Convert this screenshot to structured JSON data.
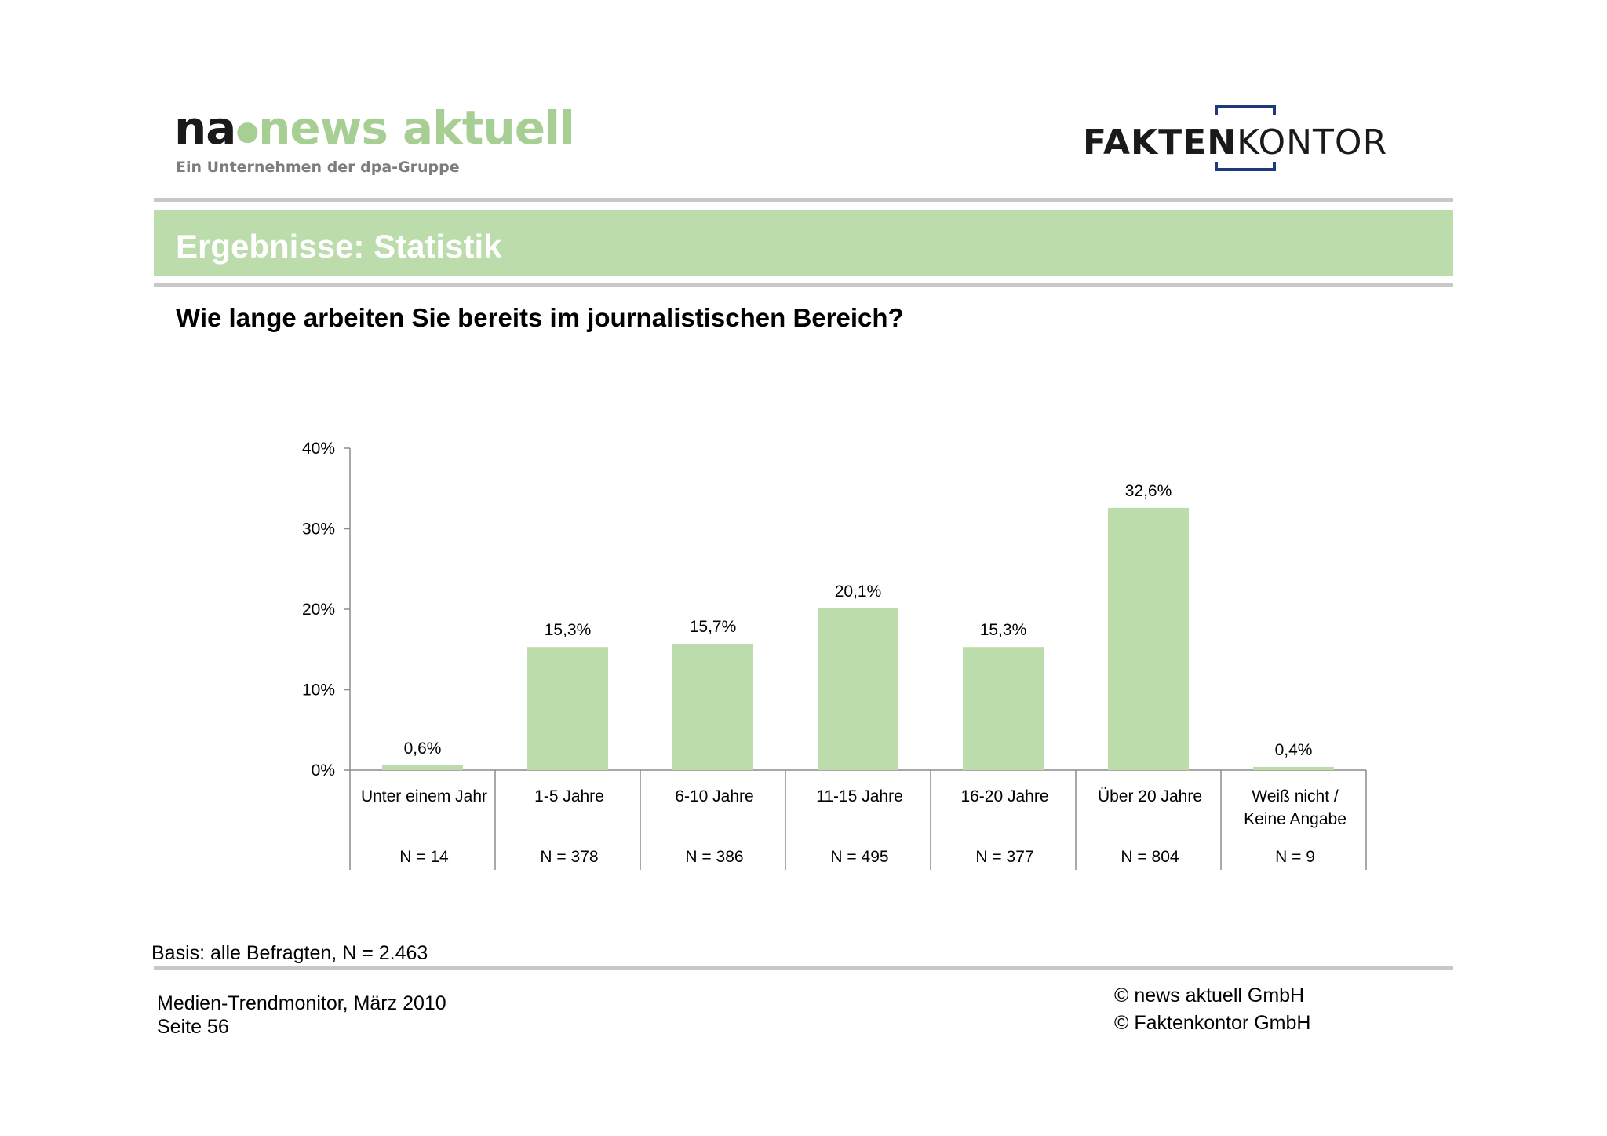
{
  "header": {
    "logo_na": "na",
    "logo_news": "news aktuell",
    "logo_sub": "Ein Unternehmen der dpa-Gruppe",
    "logo_fk_bold": "FAKTEN",
    "logo_fk_thin": "KONTOR"
  },
  "section_title": "Ergebnisse: Statistik",
  "question": "Wie lange arbeiten Sie bereits im journalistischen Bereich?",
  "chart_data": {
    "type": "bar",
    "categories": [
      "Unter einem Jahr",
      "1-5 Jahre",
      "6-10 Jahre",
      "11-15 Jahre",
      "16-20 Jahre",
      "Über 20 Jahre",
      "Weiß nicht / Keine Angabe"
    ],
    "category_lines": [
      [
        "Unter einem Jahr"
      ],
      [
        "1-5 Jahre"
      ],
      [
        "6-10 Jahre"
      ],
      [
        "11-15 Jahre"
      ],
      [
        "16-20 Jahre"
      ],
      [
        "Über 20 Jahre"
      ],
      [
        "Weiß nicht /",
        "Keine Angabe"
      ]
    ],
    "values": [
      0.6,
      15.3,
      15.7,
      20.1,
      15.3,
      32.6,
      0.4
    ],
    "value_labels": [
      "0,6%",
      "15,3%",
      "15,7%",
      "20,1%",
      "15,3%",
      "32,6%",
      "0,4%"
    ],
    "n_labels": [
      "N = 14",
      "N = 378",
      "N = 386",
      "N = 495",
      "N = 377",
      "N = 804",
      "N = 9"
    ],
    "ylim": [
      0,
      40
    ],
    "yticks": [
      0,
      10,
      20,
      30,
      40
    ],
    "ytick_labels": [
      "0%",
      "10%",
      "20%",
      "30%",
      "40%"
    ],
    "grid": false,
    "bar_color": "#bcdcac"
  },
  "basis": "Basis: alle Befragten, N = 2.463",
  "footer": {
    "line1": "Medien-Trendmonitor, März 2010",
    "line2": "Seite 56",
    "copyright1": "© news aktuell GmbH",
    "copyright2": "© Faktenkontor GmbH"
  }
}
